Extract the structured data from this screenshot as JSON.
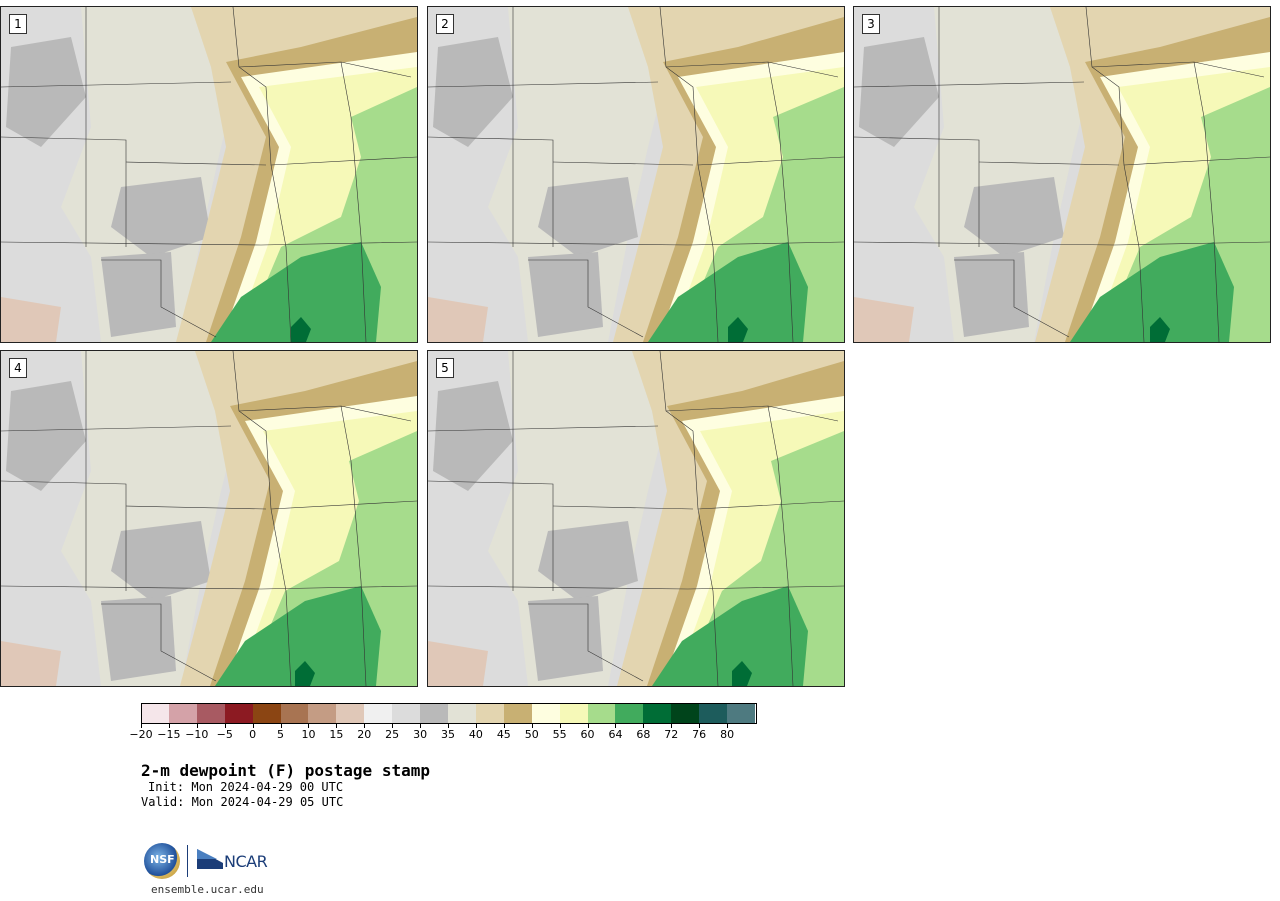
{
  "panels": [
    {
      "label": "1"
    },
    {
      "label": "2"
    },
    {
      "label": "3"
    },
    {
      "label": "4"
    },
    {
      "label": "5"
    }
  ],
  "colorbar": {
    "ticks": [
      "−20",
      "−15",
      "−10",
      "−5",
      "0",
      "5",
      "10",
      "15",
      "20",
      "25",
      "30",
      "35",
      "40",
      "45",
      "50",
      "55",
      "60",
      "64",
      "68",
      "72",
      "76",
      "80"
    ],
    "colors": [
      "#f5e6ea",
      "#d4a2a8",
      "#a85a62",
      "#8c1a22",
      "#8b4513",
      "#a87452",
      "#c49c84",
      "#e0c8b8",
      "#f0f0f0",
      "#dcdcdc",
      "#b9b9b9",
      "#e2e2d6",
      "#e3d5b0",
      "#c8b073",
      "#fefee0",
      "#f6f9b8",
      "#a6dc8c",
      "#41ab5d",
      "#006d36",
      "#00441b",
      "#1d5c5c",
      "#4e7a80"
    ]
  },
  "legend_colors": {
    "warm_dry": "#e3d5b0",
    "tan": "#c8b073",
    "pale_yellow": "#f6f9b8",
    "cream": "#fefee0",
    "light_green": "#a6dc8c",
    "mid_green": "#41ab5d",
    "dark_green": "#006d36",
    "gray_light": "#dcdcdc",
    "gray_mid": "#b9b9b9",
    "beige_gray": "#e2e2d6",
    "pink_brown": "#e0c8b8"
  },
  "title": "2-m dewpoint (F) postage stamp",
  "init": "Init: Mon 2024-04-29 00 UTC",
  "valid": "Valid: Mon 2024-04-29 05 UTC",
  "logos": {
    "nsf": "NSF",
    "ncar": "NCAR"
  },
  "website": "ensemble.ucar.edu"
}
